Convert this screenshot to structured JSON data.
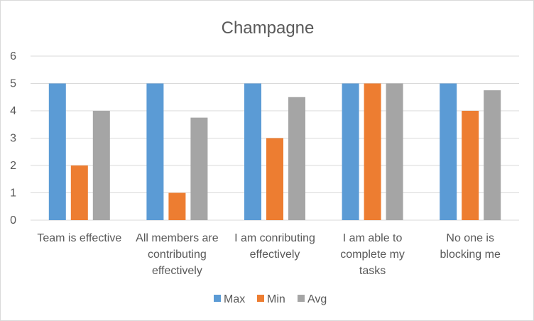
{
  "chart_data": {
    "type": "bar",
    "title": "Champagne",
    "categories": [
      [
        "Team is effective"
      ],
      [
        "All members are",
        "contributing",
        "effectively"
      ],
      [
        "I am conributing",
        "effectively"
      ],
      [
        "I am able to",
        "complete my",
        "tasks"
      ],
      [
        "No one is",
        "blocking me"
      ]
    ],
    "series": [
      {
        "name": "Max",
        "color": "#5b9bd5",
        "values": [
          5,
          5,
          5,
          5,
          5
        ]
      },
      {
        "name": "Min",
        "color": "#ed7d31",
        "values": [
          2,
          1,
          3,
          5,
          4
        ]
      },
      {
        "name": "Avg",
        "color": "#a5a5a5",
        "values": [
          4,
          3.75,
          4.5,
          5,
          4.75
        ]
      }
    ],
    "ylim": [
      0,
      6
    ],
    "yticks": [
      0,
      1,
      2,
      3,
      4,
      5,
      6
    ],
    "grid": true,
    "legend": "bottom"
  }
}
